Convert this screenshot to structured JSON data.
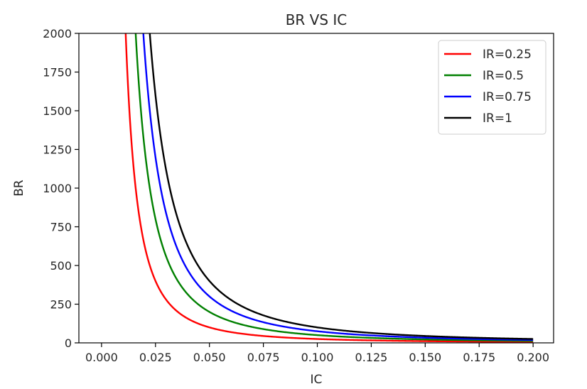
{
  "chart_data": {
    "type": "line",
    "title": "BR VS IC",
    "xlabel": "IC",
    "ylabel": "BR",
    "xlim": [
      -0.0105,
      0.2095
    ],
    "ylim": [
      0,
      2000
    ],
    "xticks": [
      "0.000",
      "0.025",
      "0.050",
      "0.075",
      "0.100",
      "0.125",
      "0.150",
      "0.175",
      "0.200"
    ],
    "yticks": [
      "0",
      "250",
      "500",
      "750",
      "1000",
      "1250",
      "1500",
      "1750",
      "2000"
    ],
    "grid": false,
    "legend_position": "top-right",
    "x_range": [
      0.001,
      0.2
    ],
    "series": [
      {
        "name": "IR=0.25",
        "color": "#ff0000",
        "values_formula": "BR = IR / IC^2",
        "IR": 0.25,
        "points": [
          [
            0.01118,
            2000
          ],
          [
            0.02,
            625
          ],
          [
            0.025,
            400
          ],
          [
            0.05,
            100
          ],
          [
            0.075,
            44.4
          ],
          [
            0.1,
            25
          ],
          [
            0.15,
            11.1
          ],
          [
            0.2,
            6.25
          ]
        ]
      },
      {
        "name": "IR=0.5",
        "color": "#008000",
        "values_formula": "BR = IR / IC^2",
        "IR": 0.5,
        "points": [
          [
            0.01581,
            2000
          ],
          [
            0.025,
            800
          ],
          [
            0.05,
            200
          ],
          [
            0.075,
            88.9
          ],
          [
            0.1,
            50
          ],
          [
            0.15,
            22.2
          ],
          [
            0.2,
            12.5
          ]
        ]
      },
      {
        "name": "IR=0.75",
        "color": "#0000ff",
        "values_formula": "BR = IR / IC^2",
        "IR": 0.75,
        "points": [
          [
            0.01936,
            2000
          ],
          [
            0.025,
            1200
          ],
          [
            0.05,
            300
          ],
          [
            0.075,
            133.3
          ],
          [
            0.1,
            75
          ],
          [
            0.15,
            33.3
          ],
          [
            0.2,
            18.75
          ]
        ]
      },
      {
        "name": "IR=1",
        "color": "#000000",
        "values_formula": "BR = IR / IC^2",
        "IR": 1,
        "points": [
          [
            0.02236,
            2000
          ],
          [
            0.025,
            1600
          ],
          [
            0.05,
            400
          ],
          [
            0.075,
            177.8
          ],
          [
            0.1,
            100
          ],
          [
            0.15,
            44.4
          ],
          [
            0.2,
            25
          ]
        ]
      }
    ]
  }
}
